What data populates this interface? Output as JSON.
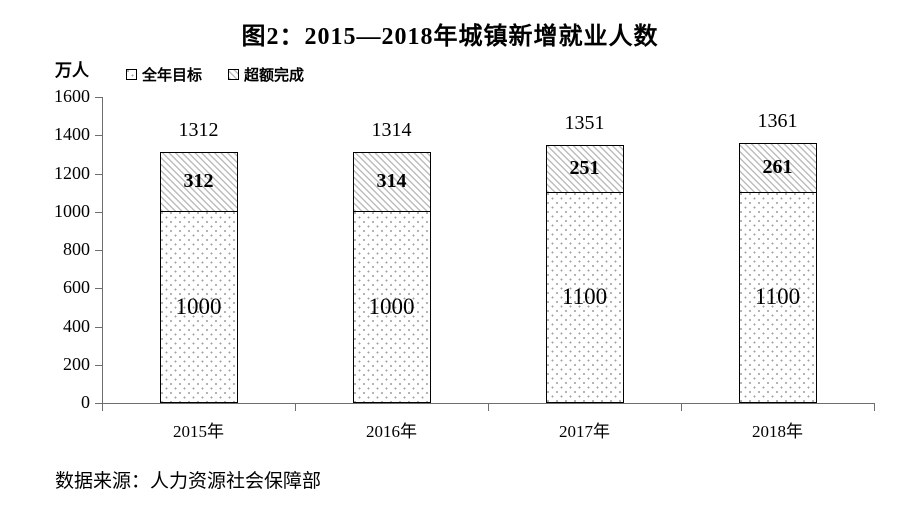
{
  "title": "图2：2015—2018年城镇新增就业人数",
  "unit_label": "万人",
  "source": "数据来源：人力资源社会保障部",
  "legend": [
    {
      "label": "全年目标",
      "pattern": "dots"
    },
    {
      "label": "超额完成",
      "pattern": "hatch"
    }
  ],
  "colors": {
    "text": "#000000",
    "axis": "#6e6e6e",
    "bar_border": "#000000",
    "pattern_gray": "#bdbdbd"
  },
  "chart_data": {
    "type": "bar",
    "stacked": true,
    "title": "图2：2015—2018年城镇新增就业人数",
    "ylabel": "万人",
    "xlabel": "",
    "categories": [
      "2015年",
      "2016年",
      "2017年",
      "2018年"
    ],
    "series": [
      {
        "name": "全年目标",
        "pattern": "dots",
        "values": [
          1000,
          1000,
          1100,
          1100
        ]
      },
      {
        "name": "超额完成",
        "pattern": "hatch",
        "values": [
          312,
          314,
          251,
          261
        ]
      }
    ],
    "totals": [
      1312,
      1314,
      1351,
      1361
    ],
    "ylim": [
      0,
      1600
    ],
    "ytick_step": 200,
    "yticks": [
      0,
      200,
      400,
      600,
      800,
      1000,
      1200,
      1400,
      1600
    ],
    "grid": false,
    "legend_position": "top-left"
  }
}
